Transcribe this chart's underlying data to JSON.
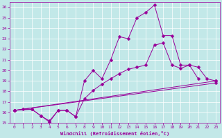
{
  "xlabel": "Windchill (Refroidissement éolien,°C)",
  "bg_color": "#c2e8e8",
  "grid_color": "#ffffff",
  "line_color": "#990099",
  "marker_size": 2.5,
  "xlim": [
    -0.5,
    23.5
  ],
  "ylim": [
    15,
    26.5
  ],
  "xticks": [
    0,
    1,
    2,
    3,
    4,
    5,
    6,
    7,
    8,
    9,
    10,
    11,
    12,
    13,
    14,
    15,
    16,
    17,
    18,
    19,
    20,
    21,
    22,
    23
  ],
  "yticks": [
    15,
    16,
    17,
    18,
    19,
    20,
    21,
    22,
    23,
    24,
    25,
    26
  ],
  "line1_x": [
    0,
    1,
    2,
    3,
    4,
    5,
    6,
    7,
    8,
    9,
    10,
    11,
    12,
    13,
    14,
    15,
    16,
    17,
    18,
    19,
    20,
    21
  ],
  "line1_y": [
    16.2,
    16.3,
    16.3,
    15.7,
    15.1,
    16.2,
    16.2,
    15.6,
    19.0,
    20.0,
    19.2,
    21.0,
    23.2,
    23.0,
    25.0,
    25.5,
    26.2,
    23.3,
    23.3,
    20.5,
    20.5,
    19.2
  ],
  "line2_x": [
    0,
    2,
    3,
    4,
    5,
    6,
    7,
    8,
    9,
    10,
    11,
    12,
    13,
    14,
    15,
    16,
    17,
    18,
    19,
    20,
    21,
    22,
    23
  ],
  "line2_y": [
    16.2,
    16.3,
    15.7,
    15.2,
    16.2,
    16.2,
    15.6,
    17.3,
    18.1,
    18.7,
    19.2,
    19.7,
    20.1,
    20.3,
    20.5,
    22.4,
    22.6,
    20.5,
    20.2,
    20.5,
    20.3,
    19.2,
    19.0
  ],
  "line3_x": [
    0,
    23
  ],
  "line3_y": [
    16.2,
    19.0
  ],
  "line4_x": [
    0,
    23
  ],
  "line4_y": [
    16.2,
    18.8
  ]
}
